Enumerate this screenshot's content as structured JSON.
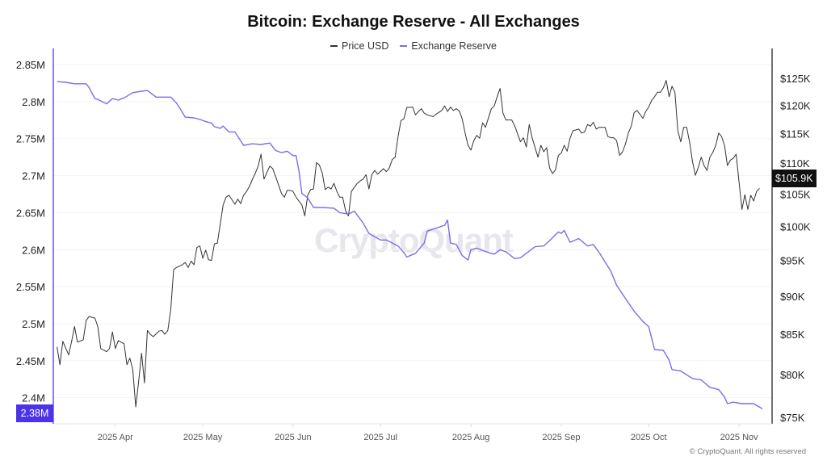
{
  "chart_data": {
    "type": "line",
    "title": "Bitcoin: Exchange Reserve - All Exchanges",
    "x_unit": "days since 2025-03-11",
    "x_start_date": "2025-03-11",
    "xlim": [
      0,
      243
    ],
    "x_ticks": [
      {
        "label": "2025 Apr",
        "day": 21
      },
      {
        "label": "2025 May",
        "day": 51
      },
      {
        "label": "2025 Jun",
        "day": 82
      },
      {
        "label": "2025 Jul",
        "day": 112
      },
      {
        "label": "2025 Aug",
        "day": 143
      },
      {
        "label": "2025 Sep",
        "day": 174
      },
      {
        "label": "2025 Oct",
        "day": 204
      },
      {
        "label": "2025 Nov",
        "day": 235
      }
    ],
    "left_axis": {
      "label": "Exchange Reserve",
      "unit": "M BTC",
      "scale": "linear",
      "ylim": [
        2.3855,
        2.85
      ],
      "ticks": [
        {
          "label": "2.85M",
          "value": 2.85
        },
        {
          "label": "2.8M",
          "value": 2.8
        },
        {
          "label": "2.75M",
          "value": 2.75
        },
        {
          "label": "2.7M",
          "value": 2.7
        },
        {
          "label": "2.65M",
          "value": 2.65
        },
        {
          "label": "2.6M",
          "value": 2.6
        },
        {
          "label": "2.55M",
          "value": 2.55
        },
        {
          "label": "2.5M",
          "value": 2.5
        },
        {
          "label": "2.45M",
          "value": 2.45
        },
        {
          "label": "2.4M",
          "value": 2.4
        }
      ],
      "current_label": "2.38M"
    },
    "right_axis": {
      "label": "Price USD",
      "unit": "K USD",
      "scale": "log",
      "ylim": [
        74.5,
        128
      ],
      "ticks": [
        {
          "label": "$125K",
          "value": 125
        },
        {
          "label": "$120K",
          "value": 120
        },
        {
          "label": "$115K",
          "value": 115
        },
        {
          "label": "$110K",
          "value": 110
        },
        {
          "label": "$105K",
          "value": 105
        },
        {
          "label": "$100K",
          "value": 100
        },
        {
          "label": "$95K",
          "value": 95
        },
        {
          "label": "$90K",
          "value": 90
        },
        {
          "label": "$85K",
          "value": 85
        },
        {
          "label": "$80K",
          "value": 80
        },
        {
          "label": "$75K",
          "value": 75
        }
      ],
      "current_label": "$105.9K"
    },
    "legend": [
      {
        "name": "Price USD",
        "color": "#333333"
      },
      {
        "name": "Exchange Reserve",
        "color": "#7b6ee6"
      }
    ],
    "legend_placement": "top-center",
    "series": [
      {
        "name": "Price USD",
        "axis": "right",
        "color": "#333333",
        "x": [
          1,
          2,
          3,
          5,
          6,
          7,
          8,
          10,
          11,
          12,
          14,
          15,
          16,
          18,
          19,
          20,
          21,
          22,
          24,
          25,
          26,
          27,
          28,
          29,
          30,
          31,
          32,
          33,
          34,
          36,
          37,
          38,
          39,
          40,
          41,
          42,
          44,
          45,
          46,
          47,
          48,
          49,
          50,
          51,
          52,
          53,
          54,
          55,
          56,
          58,
          59,
          60,
          61,
          62,
          63,
          64,
          65,
          66,
          67,
          68,
          69,
          70,
          71,
          72,
          73,
          74,
          75,
          76,
          78,
          79,
          80,
          81,
          82,
          83,
          85,
          86,
          87,
          88,
          89,
          90,
          91,
          92,
          93,
          94,
          95,
          96,
          97,
          98,
          99,
          100,
          101,
          102,
          104,
          105,
          106,
          107,
          108,
          109,
          110,
          111,
          113,
          114,
          115,
          116,
          117,
          118,
          119,
          120,
          121,
          123,
          124,
          125,
          126,
          127,
          128,
          130,
          131,
          133,
          134,
          135,
          136,
          137,
          138,
          139,
          140,
          141,
          142,
          143,
          144,
          145,
          146,
          147,
          148,
          150,
          151,
          152,
          153,
          154,
          155,
          157,
          158,
          160,
          161,
          162,
          163,
          164,
          166,
          167,
          168,
          169,
          170,
          171,
          172,
          173,
          174,
          175,
          176,
          177,
          178,
          180,
          181,
          182,
          183,
          184,
          185,
          186,
          187,
          188,
          189,
          190,
          191,
          192,
          193,
          194,
          195,
          196,
          197,
          198,
          199,
          200,
          202,
          203,
          204,
          205,
          206,
          207,
          208,
          209,
          210,
          211,
          212,
          213,
          214,
          215,
          216,
          217,
          218,
          219,
          220,
          221,
          222,
          223,
          224,
          225,
          226,
          227,
          228,
          229,
          230,
          231,
          232,
          233,
          234,
          235,
          236,
          237,
          238,
          239,
          240,
          241,
          242
        ],
        "values": [
          83.4,
          81.2,
          84.1,
          82.4,
          84.1,
          86.0,
          84.0,
          84.3,
          86.8,
          87.3,
          87.1,
          86.0,
          83.2,
          82.8,
          83.2,
          85.3,
          83.2,
          84.2,
          83.8,
          81.2,
          82.0,
          80.6,
          76.2,
          79.2,
          82.6,
          79.0,
          85.5,
          85.0,
          84.7,
          85.4,
          85.5,
          85.0,
          85.5,
          88.2,
          93.7,
          94.0,
          94.4,
          94.7,
          94.0,
          94.9,
          94.4,
          96.9,
          97.1,
          95.3,
          96.5,
          95.1,
          95.0,
          97.4,
          97.5,
          103.3,
          104.5,
          104.8,
          104.1,
          103.4,
          104.2,
          103.5,
          104.8,
          105.4,
          106.2,
          107.3,
          108.3,
          109.5,
          111.5,
          107.4,
          108.5,
          109.5,
          109.1,
          107.8,
          105.1,
          104.5,
          105.6,
          105.6,
          105.4,
          104.5,
          103.3,
          101.6,
          104.8,
          105.7,
          105.8,
          110.1,
          109.7,
          108.4,
          105.7,
          106.1,
          105.8,
          106.7,
          105.4,
          104.5,
          104.5,
          102.4,
          101.6,
          105.4,
          106.7,
          107.1,
          107.4,
          108.1,
          105.8,
          108.1,
          108.8,
          108.2,
          109.1,
          108.6,
          109.2,
          110.6,
          111.0,
          114.5,
          117.3,
          117.6,
          119.6,
          119.7,
          118.3,
          118.9,
          119.4,
          118.6,
          118.3,
          118.0,
          118.4,
          119.1,
          119.9,
          118.9,
          119.7,
          119.1,
          119.4,
          119.0,
          117.6,
          115.1,
          113.0,
          112.2,
          113.8,
          114.7,
          114.2,
          116.9,
          116.1,
          119.4,
          119.9,
          121.6,
          123.1,
          118.6,
          117.4,
          117.4,
          116.4,
          113.6,
          114.3,
          112.7,
          116.6,
          114.3,
          111.0,
          113.0,
          111.9,
          112.6,
          109.2,
          108.3,
          108.9,
          111.3,
          111.7,
          113.0,
          112.0,
          114.2,
          115.5,
          115.8,
          115.1,
          115.3,
          116.6,
          116.3,
          117.0,
          115.8,
          116.1,
          116.1,
          116.1,
          114.5,
          114.3,
          114.3,
          113.8,
          111.3,
          111.9,
          113.2,
          115.1,
          116.3,
          118.7,
          119.1,
          117.7,
          118.9,
          119.7,
          120.9,
          121.6,
          122.4,
          122.4,
          123.2,
          124.6,
          121.6,
          123.5,
          122.4,
          115.5,
          113.6,
          116.1,
          116.1,
          113.6,
          110.3,
          108.0,
          109.3,
          111.0,
          109.6,
          108.8,
          111.0,
          111.8,
          113.0,
          115.1,
          114.5,
          113.0,
          109.6,
          110.5,
          110.8,
          111.5,
          106.9,
          102.6,
          104.9,
          102.6,
          104.8,
          103.9,
          105.4,
          105.9
        ]
      },
      {
        "name": "Exchange Reserve",
        "axis": "left",
        "color": "#7b6ee6",
        "x": [
          1,
          4,
          7,
          11,
          12,
          14,
          15,
          18,
          20,
          22,
          24,
          27,
          30,
          32,
          35,
          40,
          42,
          43,
          45,
          48,
          50,
          52,
          54,
          55,
          57,
          58,
          60,
          62,
          65,
          68,
          71,
          74,
          76,
          78,
          80,
          82,
          83,
          84,
          85,
          87,
          89,
          92,
          96,
          98,
          101,
          103,
          106,
          108,
          112,
          114,
          118,
          120,
          121,
          124,
          127,
          128,
          131,
          134,
          135,
          136,
          138,
          140,
          142,
          143,
          145,
          149,
          151,
          153,
          155,
          158,
          160,
          163,
          165,
          168,
          171,
          173,
          174,
          175,
          177,
          180,
          183,
          185,
          187,
          191,
          193,
          196,
          199,
          202,
          204,
          206,
          209,
          211,
          212,
          215,
          219,
          222,
          225,
          228,
          230,
          231,
          233,
          236,
          240,
          243
        ],
        "values": [
          2.827,
          2.826,
          2.824,
          2.824,
          2.819,
          2.804,
          2.803,
          2.797,
          2.804,
          2.802,
          2.805,
          2.812,
          2.814,
          2.815,
          2.806,
          2.806,
          2.798,
          2.792,
          2.779,
          2.778,
          2.776,
          2.773,
          2.771,
          2.766,
          2.764,
          2.767,
          2.759,
          2.759,
          2.741,
          2.743,
          2.742,
          2.744,
          2.734,
          2.731,
          2.733,
          2.727,
          2.727,
          2.706,
          2.676,
          2.67,
          2.657,
          2.657,
          2.656,
          2.65,
          2.648,
          2.652,
          2.636,
          2.622,
          2.613,
          2.613,
          2.605,
          2.596,
          2.59,
          2.595,
          2.609,
          2.625,
          2.629,
          2.633,
          2.64,
          2.609,
          2.607,
          2.592,
          2.586,
          2.6,
          2.602,
          2.596,
          2.594,
          2.6,
          2.597,
          2.588,
          2.589,
          2.598,
          2.604,
          2.605,
          2.616,
          2.624,
          2.622,
          2.626,
          2.61,
          2.615,
          2.605,
          2.607,
          2.596,
          2.571,
          2.552,
          2.534,
          2.517,
          2.503,
          2.496,
          2.465,
          2.464,
          2.451,
          2.438,
          2.436,
          2.426,
          2.424,
          2.414,
          2.411,
          2.401,
          2.392,
          2.394,
          2.392,
          2.392,
          2.385
        ]
      }
    ]
  },
  "watermark": "CryptoQuant",
  "copyright": "© CryptoQuant. All rights reserved"
}
